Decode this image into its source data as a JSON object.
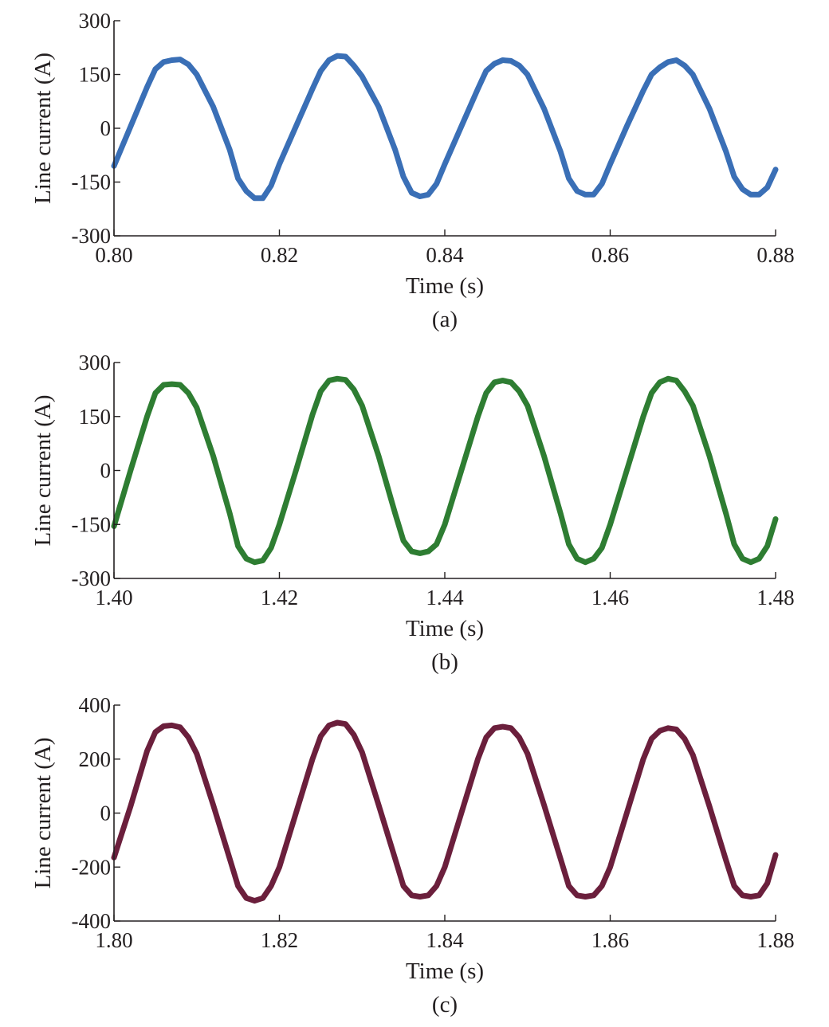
{
  "colors": {
    "axis": "#231f20",
    "background": "#ffffff"
  },
  "chart_data": [
    {
      "type": "line",
      "panel_label": "(a)",
      "xlabel": "Time (s)",
      "ylabel": "Line current (A)",
      "xlim": [
        0.8,
        0.88
      ],
      "ylim": [
        -300,
        300
      ],
      "xticks": [
        0.8,
        0.82,
        0.84,
        0.86,
        0.88
      ],
      "xtick_labels": [
        "0.80",
        "0.82",
        "0.84",
        "0.86",
        "0.88"
      ],
      "yticks": [
        -300,
        -150,
        0,
        150,
        300
      ],
      "ytick_labels": [
        "-300",
        "-150",
        "0",
        "150",
        "300"
      ],
      "grid": false,
      "series": [
        {
          "color": "#3a6fb6",
          "x": [
            0.8,
            0.802,
            0.804,
            0.805,
            0.806,
            0.807,
            0.808,
            0.809,
            0.81,
            0.812,
            0.814,
            0.815,
            0.816,
            0.817,
            0.818,
            0.819,
            0.82,
            0.822,
            0.824,
            0.825,
            0.826,
            0.827,
            0.828,
            0.829,
            0.83,
            0.832,
            0.834,
            0.835,
            0.836,
            0.837,
            0.838,
            0.839,
            0.84,
            0.842,
            0.844,
            0.845,
            0.846,
            0.847,
            0.848,
            0.849,
            0.85,
            0.852,
            0.854,
            0.855,
            0.856,
            0.857,
            0.858,
            0.859,
            0.86,
            0.862,
            0.864,
            0.865,
            0.866,
            0.867,
            0.868,
            0.869,
            0.87,
            0.872,
            0.874,
            0.875,
            0.876,
            0.877,
            0.878,
            0.879,
            0.88
          ],
          "y": [
            -105,
            5,
            115,
            165,
            185,
            190,
            192,
            178,
            150,
            60,
            -60,
            -140,
            -175,
            -195,
            -195,
            -160,
            -100,
            5,
            110,
            160,
            190,
            202,
            200,
            175,
            145,
            60,
            -60,
            -135,
            -180,
            -190,
            -185,
            -155,
            -100,
            5,
            110,
            160,
            180,
            190,
            188,
            175,
            150,
            55,
            -65,
            -140,
            -175,
            -185,
            -185,
            -155,
            -100,
            5,
            105,
            150,
            170,
            185,
            190,
            175,
            150,
            55,
            -65,
            -135,
            -170,
            -185,
            -185,
            -165,
            -115
          ]
        }
      ]
    },
    {
      "type": "line",
      "panel_label": "(b)",
      "xlabel": "Time (s)",
      "ylabel": "Line current (A)",
      "xlim": [
        1.4,
        1.48
      ],
      "ylim": [
        -300,
        300
      ],
      "xticks": [
        1.4,
        1.42,
        1.44,
        1.46,
        1.48
      ],
      "xtick_labels": [
        "1.40",
        "1.42",
        "1.44",
        "1.46",
        "1.48"
      ],
      "yticks": [
        -300,
        -150,
        0,
        150,
        300
      ],
      "ytick_labels": [
        "-300",
        "-150",
        "0",
        "150",
        "300"
      ],
      "grid": false,
      "series": [
        {
          "color": "#2e7d32",
          "x": [
            1.4,
            1.402,
            1.404,
            1.405,
            1.406,
            1.407,
            1.408,
            1.409,
            1.41,
            1.412,
            1.414,
            1.415,
            1.416,
            1.417,
            1.418,
            1.419,
            1.42,
            1.422,
            1.424,
            1.425,
            1.426,
            1.427,
            1.428,
            1.429,
            1.43,
            1.432,
            1.434,
            1.435,
            1.436,
            1.437,
            1.438,
            1.439,
            1.44,
            1.442,
            1.444,
            1.445,
            1.446,
            1.447,
            1.448,
            1.449,
            1.45,
            1.452,
            1.454,
            1.455,
            1.456,
            1.457,
            1.458,
            1.459,
            1.46,
            1.462,
            1.464,
            1.465,
            1.466,
            1.467,
            1.468,
            1.469,
            1.47,
            1.472,
            1.474,
            1.475,
            1.476,
            1.477,
            1.478,
            1.479,
            1.48
          ],
          "y": [
            -155,
            0,
            150,
            215,
            238,
            240,
            238,
            215,
            175,
            40,
            -120,
            -210,
            -245,
            -255,
            -250,
            -215,
            -150,
            0,
            155,
            220,
            250,
            255,
            252,
            225,
            180,
            40,
            -120,
            -195,
            -225,
            -230,
            -225,
            -205,
            -150,
            0,
            150,
            215,
            245,
            250,
            245,
            220,
            180,
            40,
            -120,
            -205,
            -245,
            -255,
            -245,
            -215,
            -150,
            0,
            150,
            215,
            245,
            255,
            250,
            220,
            180,
            40,
            -120,
            -205,
            -245,
            -255,
            -245,
            -210,
            -135
          ]
        }
      ]
    },
    {
      "type": "line",
      "panel_label": "(c)",
      "xlabel": "Time (s)",
      "ylabel": "Line current (A)",
      "xlim": [
        1.8,
        1.88
      ],
      "ylim": [
        -400,
        400
      ],
      "xticks": [
        1.8,
        1.82,
        1.84,
        1.86,
        1.88
      ],
      "xtick_labels": [
        "1.80",
        "1.82",
        "1.84",
        "1.86",
        "1.88"
      ],
      "yticks": [
        -400,
        -200,
        0,
        200,
        400
      ],
      "ytick_labels": [
        "-400",
        "-200",
        "0",
        "200",
        "400"
      ],
      "grid": false,
      "series": [
        {
          "color": "#6b1f3c",
          "x": [
            1.8,
            1.802,
            1.804,
            1.805,
            1.806,
            1.807,
            1.808,
            1.809,
            1.81,
            1.812,
            1.814,
            1.815,
            1.816,
            1.817,
            1.818,
            1.819,
            1.82,
            1.822,
            1.824,
            1.825,
            1.826,
            1.827,
            1.828,
            1.829,
            1.83,
            1.832,
            1.834,
            1.835,
            1.836,
            1.837,
            1.838,
            1.839,
            1.84,
            1.842,
            1.844,
            1.845,
            1.846,
            1.847,
            1.848,
            1.849,
            1.85,
            1.852,
            1.854,
            1.855,
            1.856,
            1.857,
            1.858,
            1.859,
            1.86,
            1.862,
            1.864,
            1.865,
            1.866,
            1.867,
            1.868,
            1.869,
            1.87,
            1.872,
            1.874,
            1.875,
            1.876,
            1.877,
            1.878,
            1.879,
            1.88
          ],
          "y": [
            -165,
            25,
            230,
            300,
            322,
            325,
            318,
            280,
            220,
            30,
            -170,
            -270,
            -315,
            -325,
            -315,
            -270,
            -200,
            0,
            200,
            285,
            325,
            335,
            330,
            290,
            225,
            30,
            -170,
            -270,
            -305,
            -310,
            -305,
            -270,
            -200,
            0,
            200,
            280,
            315,
            320,
            315,
            280,
            220,
            30,
            -170,
            -270,
            -305,
            -310,
            -305,
            -270,
            -200,
            0,
            200,
            275,
            305,
            315,
            310,
            275,
            215,
            25,
            -175,
            -270,
            -305,
            -310,
            -305,
            -260,
            -155
          ]
        }
      ]
    }
  ]
}
